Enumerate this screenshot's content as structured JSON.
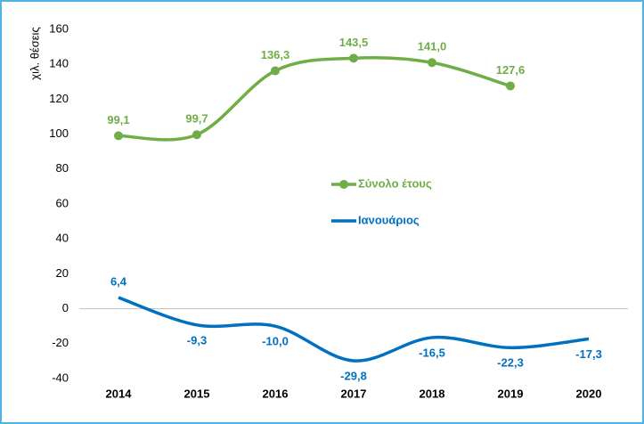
{
  "chart_data": {
    "type": "line",
    "y_label": "χιλ. θέσεις",
    "categories": [
      "2014",
      "2015",
      "2016",
      "2017",
      "2018",
      "2019",
      "2020"
    ],
    "series": [
      {
        "name": "Σύνολο έτους",
        "color": "#70ad47",
        "markers": true,
        "values": [
          99.1,
          99.7,
          136.3,
          143.5,
          141.0,
          127.6,
          null
        ],
        "value_labels": [
          "99,1",
          "99,7",
          "136,3",
          "143,5",
          "141,0",
          "127,6",
          null
        ]
      },
      {
        "name": "Ιανουάριος",
        "color": "#0070c0",
        "markers": false,
        "values": [
          6.4,
          -9.3,
          -10.0,
          -29.8,
          -16.5,
          -22.3,
          -17.3
        ],
        "value_labels": [
          "6,4",
          "-9,3",
          "-10,0",
          "-29,8",
          "-16,5",
          "-22,3",
          "-17,3"
        ]
      }
    ],
    "ylim": [
      -40,
      160
    ],
    "yticks": [
      -40,
      -20,
      0,
      20,
      40,
      60,
      80,
      100,
      120,
      140,
      160
    ],
    "grid": false,
    "smooth": true,
    "legend": "center"
  }
}
